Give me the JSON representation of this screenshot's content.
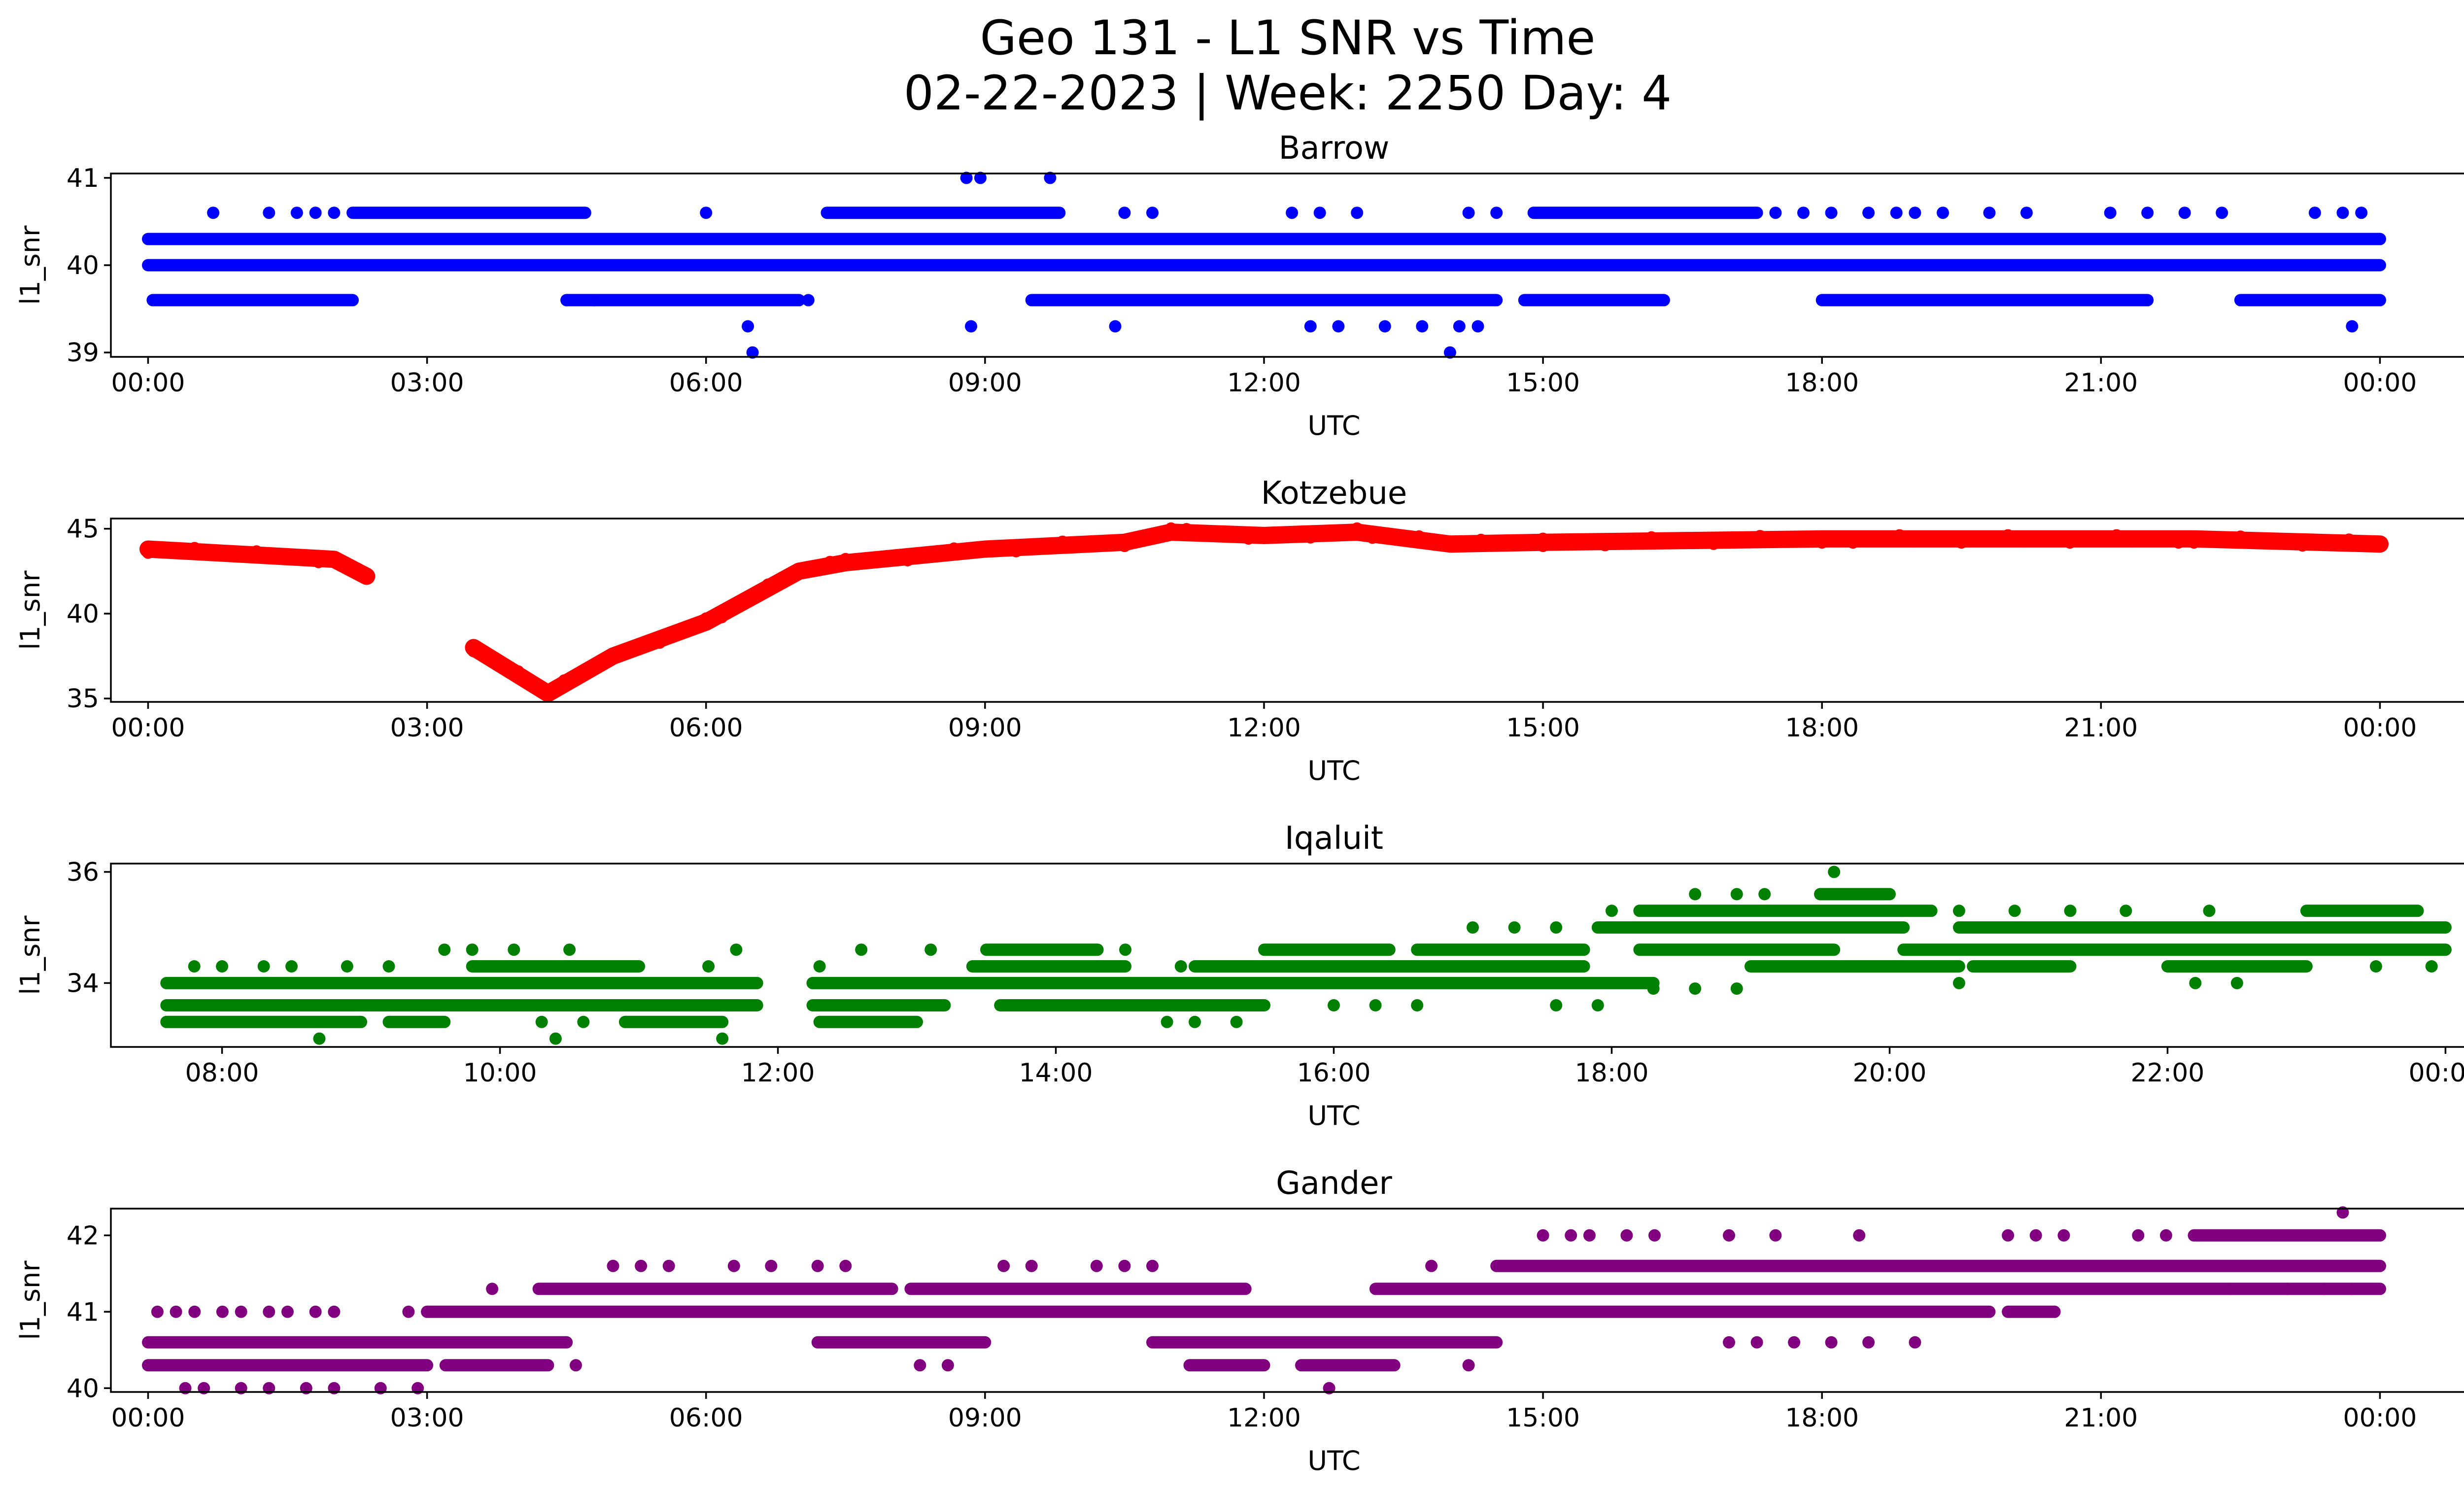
{
  "figure": {
    "title_line1": "Geo 131 - L1 SNR vs Time",
    "title_line2": "02-22-2023 | Week: 2250 Day: 4"
  },
  "chart_data": [
    {
      "type": "scatter",
      "title": "Barrow",
      "xlabel": "UTC",
      "ylabel": "l1_snr",
      "color": "#0000ff",
      "xlim": [
        -0.4,
        25.9
      ],
      "ylim": [
        38.95,
        41.05
      ],
      "xticks": [
        0,
        3,
        6,
        9,
        12,
        15,
        18,
        21,
        24
      ],
      "xtick_labels": [
        "00:00",
        "03:00",
        "06:00",
        "09:00",
        "12:00",
        "15:00",
        "18:00",
        "21:00",
        "00:00"
      ],
      "yticks": [
        39,
        40,
        41
      ],
      "ytick_labels": [
        "39",
        "40",
        "41"
      ],
      "levels": [
        {
          "y": 40.3,
          "ranges": [
            [
              0,
              24
            ]
          ]
        },
        {
          "y": 40.0,
          "ranges": [
            [
              0,
              24
            ]
          ]
        },
        {
          "y": 39.6,
          "ranges": [
            [
              0.05,
              2.2
            ],
            [
              4.5,
              7.0
            ],
            [
              9.5,
              14.5
            ],
            [
              14.8,
              16.3
            ],
            [
              18.0,
              21.5
            ],
            [
              22.5,
              24.0
            ]
          ]
        },
        {
          "y": 40.6,
          "ranges": [
            [
              2.2,
              4.7
            ],
            [
              7.3,
              9.8
            ],
            [
              14.9,
              17.3
            ]
          ]
        }
      ],
      "scatter_points": [
        [
          0.7,
          40.6
        ],
        [
          1.3,
          40.6
        ],
        [
          1.6,
          40.6
        ],
        [
          1.8,
          40.6
        ],
        [
          2.0,
          40.6
        ],
        [
          6.0,
          40.6
        ],
        [
          4.5,
          39.6
        ],
        [
          4.8,
          39.6
        ],
        [
          7.1,
          39.6
        ],
        [
          10.5,
          40.6
        ],
        [
          10.8,
          40.6
        ],
        [
          12.3,
          40.6
        ],
        [
          12.6,
          40.6
        ],
        [
          13.0,
          40.6
        ],
        [
          14.2,
          40.6
        ],
        [
          14.5,
          40.6
        ],
        [
          17.5,
          40.6
        ],
        [
          17.8,
          40.6
        ],
        [
          18.1,
          40.6
        ],
        [
          18.5,
          40.6
        ],
        [
          18.8,
          40.6
        ],
        [
          19.0,
          40.6
        ],
        [
          19.3,
          40.6
        ],
        [
          19.8,
          40.6
        ],
        [
          20.2,
          40.6
        ],
        [
          21.1,
          40.6
        ],
        [
          21.5,
          40.6
        ],
        [
          21.9,
          40.6
        ],
        [
          22.3,
          40.6
        ],
        [
          23.3,
          40.6
        ],
        [
          23.6,
          40.6
        ],
        [
          23.8,
          40.6
        ],
        [
          8.8,
          41.0
        ],
        [
          8.95,
          41.0
        ],
        [
          9.7,
          41.0
        ],
        [
          6.45,
          39.3
        ],
        [
          8.85,
          39.3
        ],
        [
          10.4,
          39.3
        ],
        [
          12.5,
          39.3
        ],
        [
          12.8,
          39.3
        ],
        [
          13.3,
          39.3
        ],
        [
          13.7,
          39.3
        ],
        [
          14.1,
          39.3
        ],
        [
          14.3,
          39.3
        ],
        [
          23.7,
          39.3
        ],
        [
          6.5,
          39.0
        ],
        [
          14.0,
          39.0
        ]
      ]
    },
    {
      "type": "scatter",
      "title": "Kotzebue",
      "xlabel": "UTC",
      "ylabel": "l1_snr",
      "color": "#ff0000",
      "xlim": [
        -0.4,
        25.9
      ],
      "ylim": [
        34.8,
        45.6
      ],
      "xticks": [
        0,
        3,
        6,
        9,
        12,
        15,
        18,
        21,
        24
      ],
      "xtick_labels": [
        "00:00",
        "03:00",
        "06:00",
        "09:00",
        "12:00",
        "15:00",
        "18:00",
        "21:00",
        "00:00"
      ],
      "yticks": [
        35,
        40,
        45
      ],
      "ytick_labels": [
        "35",
        "40",
        "45"
      ],
      "segments": [
        [
          [
            0.0,
            43.8
          ],
          [
            1.0,
            43.5
          ],
          [
            2.0,
            43.2
          ],
          [
            2.35,
            42.2
          ]
        ],
        [
          [
            3.5,
            38.0
          ],
          [
            4.3,
            35.3
          ],
          [
            5.0,
            37.5
          ],
          [
            6.0,
            39.5
          ],
          [
            7.0,
            42.5
          ],
          [
            7.5,
            43.0
          ],
          [
            9.0,
            43.8
          ],
          [
            10.5,
            44.2
          ],
          [
            11.0,
            44.8
          ],
          [
            12.0,
            44.6
          ],
          [
            13.0,
            44.8
          ],
          [
            14.0,
            44.1
          ],
          [
            15.0,
            44.2
          ],
          [
            18.0,
            44.4
          ],
          [
            22.0,
            44.4
          ],
          [
            24.0,
            44.1
          ]
        ]
      ]
    },
    {
      "type": "scatter",
      "title": "Iqaluit",
      "xlabel": "UTC",
      "ylabel": "l1_snr",
      "color": "#008000",
      "xlim": [
        7.2,
        24.8
      ],
      "ylim": [
        32.85,
        36.15
      ],
      "xticks": [
        8,
        10,
        12,
        14,
        16,
        18,
        20,
        22,
        24
      ],
      "xtick_labels": [
        "08:00",
        "10:00",
        "12:00",
        "14:00",
        "16:00",
        "18:00",
        "20:00",
        "22:00",
        "00:00"
      ],
      "yticks": [
        34,
        36
      ],
      "ytick_labels": [
        "34",
        "36"
      ],
      "levels": [
        {
          "y": 34.0,
          "ranges": [
            [
              7.6,
              11.85
            ],
            [
              12.25,
              18.3
            ]
          ]
        },
        {
          "y": 33.6,
          "ranges": [
            [
              7.6,
              11.85
            ],
            [
              12.25,
              13.2
            ],
            [
              13.6,
              15.5
            ]
          ]
        },
        {
          "y": 33.3,
          "ranges": [
            [
              7.6,
              9.0
            ],
            [
              9.2,
              9.6
            ],
            [
              10.9,
              11.6
            ],
            [
              12.3,
              13.0
            ]
          ]
        },
        {
          "y": 34.3,
          "ranges": [
            [
              9.8,
              11.0
            ],
            [
              13.4,
              14.5
            ],
            [
              15.0,
              17.8
            ],
            [
              19.0,
              20.5
            ],
            [
              20.6,
              21.3
            ],
            [
              22.0,
              23.0
            ]
          ]
        },
        {
          "y": 34.6,
          "ranges": [
            [
              13.5,
              14.3
            ],
            [
              15.5,
              16.4
            ],
            [
              16.6,
              17.8
            ],
            [
              18.2,
              19.6
            ],
            [
              20.1,
              24.0
            ]
          ]
        },
        {
          "y": 35.0,
          "ranges": [
            [
              17.9,
              20.1
            ],
            [
              20.5,
              24.0
            ]
          ]
        },
        {
          "y": 35.3,
          "ranges": [
            [
              18.2,
              20.3
            ],
            [
              23.0,
              23.8
            ]
          ]
        },
        {
          "y": 35.6,
          "ranges": [
            [
              19.5,
              20.0
            ]
          ]
        }
      ],
      "scatter_points": [
        [
          7.8,
          34.3
        ],
        [
          8.0,
          34.3
        ],
        [
          8.3,
          34.3
        ],
        [
          8.5,
          34.3
        ],
        [
          8.9,
          34.3
        ],
        [
          9.2,
          34.3
        ],
        [
          9.6,
          34.6
        ],
        [
          9.8,
          34.6
        ],
        [
          10.1,
          34.6
        ],
        [
          10.5,
          34.6
        ],
        [
          11.5,
          34.3
        ],
        [
          11.7,
          34.6
        ],
        [
          12.3,
          34.3
        ],
        [
          12.6,
          34.6
        ],
        [
          13.1,
          34.6
        ],
        [
          14.5,
          34.6
        ],
        [
          14.9,
          34.3
        ],
        [
          16.0,
          33.6
        ],
        [
          16.3,
          33.6
        ],
        [
          16.6,
          33.6
        ],
        [
          17.6,
          33.6
        ],
        [
          17.9,
          33.6
        ],
        [
          14.8,
          33.3
        ],
        [
          15.0,
          33.3
        ],
        [
          15.3,
          33.3
        ],
        [
          17.0,
          35.0
        ],
        [
          17.3,
          35.0
        ],
        [
          17.6,
          35.0
        ],
        [
          18.0,
          35.3
        ],
        [
          18.6,
          35.6
        ],
        [
          18.9,
          35.6
        ],
        [
          19.1,
          35.6
        ],
        [
          18.3,
          33.9
        ],
        [
          18.6,
          33.9
        ],
        [
          18.9,
          33.9
        ],
        [
          20.5,
          35.3
        ],
        [
          20.9,
          35.3
        ],
        [
          21.3,
          35.3
        ],
        [
          21.7,
          35.3
        ],
        [
          22.3,
          35.3
        ],
        [
          20.5,
          34.0
        ],
        [
          22.2,
          34.0
        ],
        [
          22.5,
          34.0
        ],
        [
          23.5,
          34.3
        ],
        [
          23.9,
          34.3
        ],
        [
          8.7,
          33.0
        ],
        [
          10.4,
          33.0
        ],
        [
          11.6,
          33.0
        ],
        [
          10.3,
          33.3
        ],
        [
          10.6,
          33.3
        ],
        [
          19.6,
          36.0
        ]
      ]
    },
    {
      "type": "scatter",
      "title": "Gander",
      "xlabel": "UTC",
      "ylabel": "l1_snr",
      "color": "#800080",
      "xlim": [
        -0.4,
        25.9
      ],
      "ylim": [
        39.95,
        42.35
      ],
      "xticks": [
        0,
        3,
        6,
        9,
        12,
        15,
        18,
        21,
        24
      ],
      "xtick_labels": [
        "00:00",
        "03:00",
        "06:00",
        "09:00",
        "12:00",
        "15:00",
        "18:00",
        "21:00",
        "00:00"
      ],
      "yticks": [
        40,
        41,
        42
      ],
      "ytick_labels": [
        "40",
        "41",
        "42"
      ],
      "levels": [
        {
          "y": 40.6,
          "ranges": [
            [
              0,
              4.5
            ],
            [
              7.2,
              9.0
            ],
            [
              10.8,
              14.5
            ]
          ]
        },
        {
          "y": 40.3,
          "ranges": [
            [
              0,
              3.0
            ],
            [
              3.2,
              4.3
            ],
            [
              11.2,
              12.0
            ],
            [
              12.4,
              13.4
            ]
          ]
        },
        {
          "y": 41.0,
          "ranges": [
            [
              3.0,
              19.8
            ],
            [
              20.0,
              20.5
            ]
          ]
        },
        {
          "y": 41.3,
          "ranges": [
            [
              4.2,
              8.0
            ],
            [
              8.2,
              11.8
            ],
            [
              13.2,
              24.0
            ]
          ]
        },
        {
          "y": 41.6,
          "ranges": [
            [
              14.5,
              24.0
            ]
          ]
        },
        {
          "y": 42.0,
          "ranges": [
            [
              22.0,
              24.0
            ]
          ]
        }
      ],
      "scatter_points": [
        [
          0.1,
          41.0
        ],
        [
          0.3,
          41.0
        ],
        [
          0.5,
          41.0
        ],
        [
          0.8,
          41.0
        ],
        [
          1.0,
          41.0
        ],
        [
          1.3,
          41.0
        ],
        [
          1.5,
          41.0
        ],
        [
          1.8,
          41.0
        ],
        [
          2.0,
          41.0
        ],
        [
          2.8,
          41.0
        ],
        [
          0.4,
          40.0
        ],
        [
          0.6,
          40.0
        ],
        [
          1.0,
          40.0
        ],
        [
          1.3,
          40.0
        ],
        [
          1.7,
          40.0
        ],
        [
          2.0,
          40.0
        ],
        [
          2.5,
          40.0
        ],
        [
          2.9,
          40.0
        ],
        [
          3.7,
          41.3
        ],
        [
          4.6,
          40.3
        ],
        [
          8.3,
          40.3
        ],
        [
          8.6,
          40.3
        ],
        [
          14.2,
          40.3
        ],
        [
          12.7,
          40.0
        ],
        [
          5.0,
          41.6
        ],
        [
          5.3,
          41.6
        ],
        [
          5.6,
          41.6
        ],
        [
          6.3,
          41.6
        ],
        [
          6.7,
          41.6
        ],
        [
          7.2,
          41.6
        ],
        [
          7.5,
          41.6
        ],
        [
          9.2,
          41.6
        ],
        [
          9.5,
          41.6
        ],
        [
          10.2,
          41.6
        ],
        [
          10.5,
          41.6
        ],
        [
          10.8,
          41.6
        ],
        [
          13.8,
          41.6
        ],
        [
          15.0,
          42.0
        ],
        [
          15.3,
          42.0
        ],
        [
          15.5,
          42.0
        ],
        [
          15.9,
          42.0
        ],
        [
          16.2,
          42.0
        ],
        [
          17.0,
          42.0
        ],
        [
          17.5,
          42.0
        ],
        [
          18.4,
          42.0
        ],
        [
          20.0,
          42.0
        ],
        [
          20.3,
          42.0
        ],
        [
          20.6,
          42.0
        ],
        [
          21.4,
          42.0
        ],
        [
          21.7,
          42.0
        ],
        [
          23.6,
          42.3
        ],
        [
          17.0,
          40.6
        ],
        [
          17.3,
          40.6
        ],
        [
          17.7,
          40.6
        ],
        [
          18.1,
          40.6
        ],
        [
          18.5,
          40.6
        ],
        [
          19.0,
          40.6
        ],
        [
          20.5,
          41.0
        ],
        [
          22.4,
          41.3
        ],
        [
          23.0,
          41.3
        ],
        [
          23.4,
          41.3
        ],
        [
          23.7,
          41.3
        ]
      ]
    }
  ]
}
